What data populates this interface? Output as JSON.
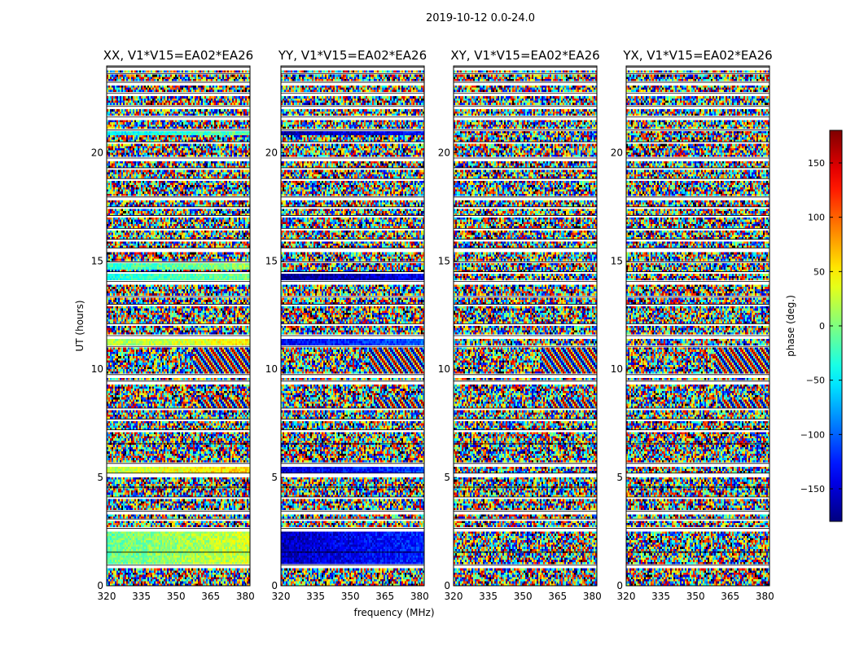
{
  "figure": {
    "suptitle": "2019-10-12 0.0-24.0"
  },
  "chart_data": {
    "type": "heatmap",
    "xlabel": "frequency (MHz)",
    "ylabel": "UT (hours)",
    "xlim": [
      320,
      382
    ],
    "ylim": [
      0,
      24
    ],
    "xticks": [
      320,
      335,
      350,
      365,
      380
    ],
    "yticks": [
      0,
      5,
      10,
      15,
      20
    ],
    "panels": [
      {
        "title": "XX, V1*V15=EA02*EA26",
        "pol": "XX"
      },
      {
        "title": "YY, V1*V15=EA02*EA26",
        "pol": "YY"
      },
      {
        "title": "XY, V1*V15=EA02*EA26",
        "pol": "XY"
      },
      {
        "title": "YX, V1*V15=EA02*EA26",
        "pol": "YX"
      }
    ],
    "colorbar": {
      "label": "phase (deg.)",
      "range": [
        -180,
        180
      ],
      "ticks": [
        150,
        100,
        50,
        0,
        -50,
        -100,
        -150
      ],
      "colormap": "jet"
    },
    "flagged_gaps_hours": [
      [
        0.85,
        0.95
      ],
      [
        1.45,
        1.55
      ],
      [
        2.55,
        2.65
      ],
      [
        3.0,
        3.08
      ],
      [
        3.35,
        3.45
      ],
      [
        4.05,
        4.1
      ],
      [
        4.5,
        4.55
      ],
      [
        5.05,
        5.2
      ],
      [
        5.55,
        5.65
      ],
      [
        6.45,
        6.55
      ],
      [
        7.1,
        7.2
      ],
      [
        7.6,
        7.7
      ],
      [
        8.15,
        8.2
      ],
      [
        9.3,
        9.45
      ],
      [
        9.65,
        9.75
      ],
      [
        11.0,
        11.05
      ],
      [
        11.45,
        11.55
      ],
      [
        12.0,
        12.1
      ],
      [
        12.95,
        13.0
      ],
      [
        13.3,
        13.35
      ],
      [
        13.95,
        14.05
      ],
      [
        14.4,
        14.5
      ],
      [
        14.9,
        14.95
      ],
      [
        15.45,
        15.6
      ],
      [
        15.95,
        16.0
      ],
      [
        16.4,
        16.5
      ],
      [
        17.0,
        17.1
      ],
      [
        17.4,
        17.5
      ],
      [
        17.85,
        17.95
      ],
      [
        18.7,
        18.8
      ],
      [
        19.2,
        19.3
      ],
      [
        19.6,
        19.75
      ],
      [
        20.4,
        20.5
      ],
      [
        21.0,
        21.05
      ],
      [
        21.55,
        21.65
      ],
      [
        22.05,
        22.15
      ],
      [
        22.65,
        22.75
      ],
      [
        23.15,
        23.25
      ],
      [
        23.6,
        23.65
      ],
      [
        23.85,
        23.95
      ]
    ],
    "coherent_regions": [
      {
        "panel": "XX",
        "t": [
          1.0,
          2.6
        ],
        "f": [
          320,
          382
        ],
        "phase": 10,
        "kind": "smooth"
      },
      {
        "panel": "XX",
        "t": [
          5.2,
          5.5
        ],
        "f": [
          320,
          382
        ],
        "phase": 40,
        "kind": "smooth"
      },
      {
        "panel": "XX",
        "t": [
          11.1,
          11.4
        ],
        "f": [
          320,
          382
        ],
        "phase": 30,
        "kind": "smooth"
      },
      {
        "panel": "XX",
        "t": [
          14.0,
          14.35
        ],
        "f": [
          320,
          382
        ],
        "phase": -20,
        "kind": "smooth"
      },
      {
        "panel": "XX",
        "t": [
          14.6,
          14.85
        ],
        "f": [
          320,
          382
        ],
        "phase": -10,
        "kind": "smooth"
      },
      {
        "panel": "XX",
        "t": [
          20.8,
          21.0
        ],
        "f": [
          320,
          382
        ],
        "phase": -30,
        "kind": "smooth"
      },
      {
        "panel": "YY",
        "t": [
          1.0,
          2.6
        ],
        "f": [
          320,
          382
        ],
        "phase": -140,
        "kind": "smooth"
      },
      {
        "panel": "YY",
        "t": [
          5.2,
          5.5
        ],
        "f": [
          320,
          382
        ],
        "phase": -130,
        "kind": "smooth"
      },
      {
        "panel": "YY",
        "t": [
          11.1,
          11.4
        ],
        "f": [
          320,
          382
        ],
        "phase": -120,
        "kind": "smooth"
      },
      {
        "panel": "YY",
        "t": [
          14.0,
          14.35
        ],
        "f": [
          320,
          382
        ],
        "phase": -160,
        "kind": "smooth"
      },
      {
        "panel": "YY",
        "t": [
          20.8,
          21.0
        ],
        "f": [
          320,
          382
        ],
        "phase": -150,
        "kind": "smooth"
      },
      {
        "panel": "XX",
        "t": [
          9.75,
          11.0
        ],
        "f": [
          358,
          382
        ],
        "phase": 0,
        "kind": "fringe"
      },
      {
        "panel": "YY",
        "t": [
          9.75,
          11.0
        ],
        "f": [
          358,
          382
        ],
        "phase": 0,
        "kind": "fringe"
      },
      {
        "panel": "XY",
        "t": [
          9.75,
          11.0
        ],
        "f": [
          358,
          382
        ],
        "phase": 0,
        "kind": "fringe"
      },
      {
        "panel": "YX",
        "t": [
          9.75,
          11.0
        ],
        "f": [
          358,
          382
        ],
        "phase": 0,
        "kind": "fringe"
      },
      {
        "panel": "XX",
        "t": [
          8.2,
          8.55
        ],
        "f": [
          360,
          382
        ],
        "phase": 0,
        "kind": "fringe"
      },
      {
        "panel": "YY",
        "t": [
          8.2,
          8.55
        ],
        "f": [
          360,
          382
        ],
        "phase": 0,
        "kind": "fringe"
      },
      {
        "panel": "XY",
        "t": [
          8.2,
          8.55
        ],
        "f": [
          360,
          382
        ],
        "phase": 0,
        "kind": "fringe"
      },
      {
        "panel": "YX",
        "t": [
          8.2,
          8.55
        ],
        "f": [
          360,
          382
        ],
        "phase": 0,
        "kind": "fringe"
      }
    ]
  }
}
